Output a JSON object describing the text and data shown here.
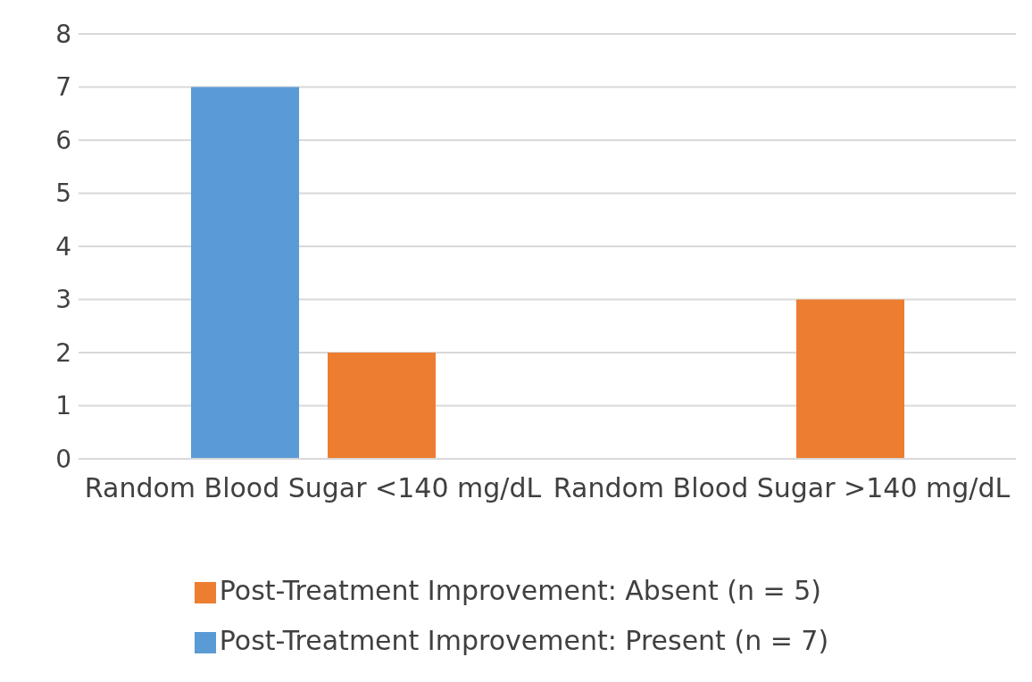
{
  "chart_data": {
    "type": "bar",
    "categories": [
      "Random Blood Sugar <140 mg/dL",
      "Random Blood Sugar >140 mg/dL"
    ],
    "series": [
      {
        "name": "Post-Treatment Improvement: Present (n = 7)",
        "color": "#5b9bd5",
        "values": [
          7,
          0
        ]
      },
      {
        "name": "Post-Treatment Improvement: Absent (n = 5)",
        "color": "#ed7d31",
        "values": [
          2,
          3
        ]
      }
    ],
    "ylim": [
      0,
      8
    ],
    "yticks": [
      0,
      1,
      2,
      3,
      4,
      5,
      6,
      7,
      8
    ],
    "grid": "y",
    "legend": "bottom"
  }
}
